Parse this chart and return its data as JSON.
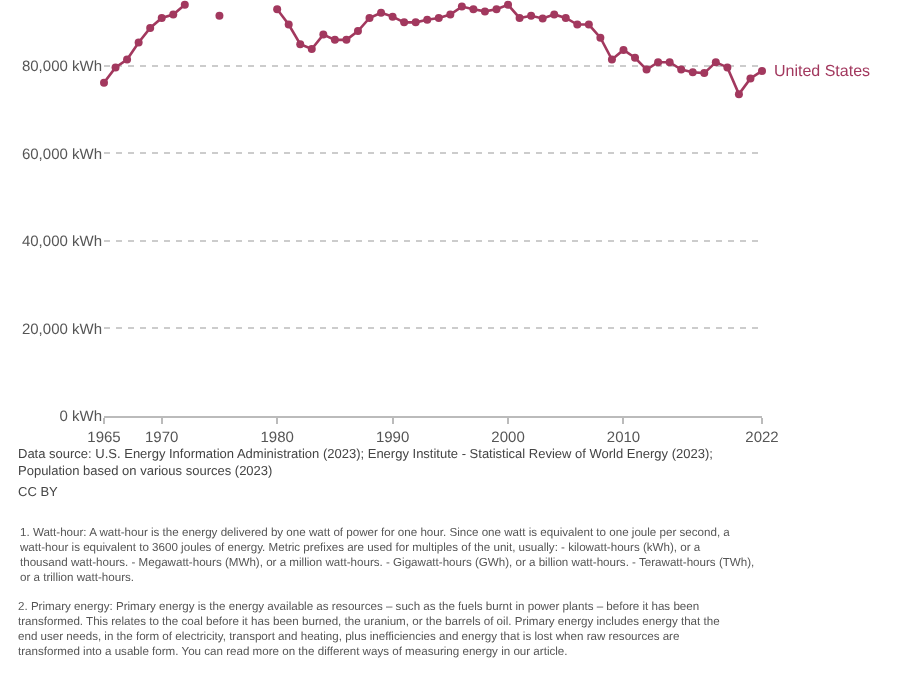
{
  "chart_data": {
    "type": "line",
    "x": [
      1965,
      1966,
      1967,
      1968,
      1969,
      1970,
      1971,
      1972,
      1973,
      1974,
      1975,
      1976,
      1977,
      1978,
      1979,
      1980,
      1981,
      1982,
      1983,
      1984,
      1985,
      1986,
      1987,
      1988,
      1989,
      1990,
      1991,
      1992,
      1993,
      1994,
      1995,
      1996,
      1997,
      1998,
      1999,
      2000,
      2001,
      2002,
      2003,
      2004,
      2005,
      2006,
      2007,
      2008,
      2009,
      2010,
      2011,
      2012,
      2013,
      2014,
      2015,
      2016,
      2017,
      2018,
      2019,
      2020,
      2021,
      2022
    ],
    "series": [
      {
        "name": "United States",
        "color": "#a2385e",
        "values": [
          76100,
          79600,
          81400,
          85300,
          88600,
          90900,
          91700,
          93900,
          null,
          null,
          91400,
          null,
          null,
          null,
          null,
          92900,
          89400,
          84900,
          83800,
          87100,
          85900,
          85900,
          87900,
          90900,
          92100,
          91200,
          89900,
          89900,
          90500,
          90900,
          91700,
          93500,
          92900,
          92400,
          92900,
          93900,
          90900,
          91400,
          90800,
          91700,
          90900,
          89400,
          89400,
          86400,
          81400,
          83600,
          81800,
          79100,
          80800,
          80800,
          79100,
          78500,
          78300,
          80800,
          79600,
          73500,
          77100,
          78800
        ]
      }
    ],
    "xlim": [
      1965,
      2022
    ],
    "xticks": [
      1965,
      1970,
      1980,
      1990,
      2000,
      2010,
      2022
    ],
    "ylim": [
      0,
      95000
    ],
    "yticks": [
      {
        "value": 0,
        "label": "0 kWh"
      },
      {
        "value": 20000,
        "label": "20,000 kWh"
      },
      {
        "value": 40000,
        "label": "40,000 kWh"
      },
      {
        "value": 60000,
        "label": "60,000 kWh"
      },
      {
        "value": 80000,
        "label": "80,000 kWh"
      }
    ],
    "grid": "y",
    "marker": "circle",
    "line_style": "solid",
    "legend": false,
    "annotations": [
      "Data source: U.S. Energy Information Administration (2023); Energy Institute - Statistical Review of World Energy (2023); Population based on various sources (2023)",
      "CC BY",
      "1. Watt-hour: A watt-hour is the energy delivered by one watt of power for one hour. Since one watt is equivalent to one joule per second, a watt-hour is equivalent to 3600 joules of energy. Metric prefixes are used for multiples of the unit, usually: - kilowatt-hours (kWh), or a thousand watt-hours. - Megawatt-hours (MWh), or a million watt-hours. - Gigawatt-hours (GWh), or a billion watt-hours. - Terawatt-hours (TWh), or a trillion watt-hours.",
      "2. Primary energy: Primary energy is the energy available as resources – such as the fuels burnt in power plants – before it has been transformed. This relates to the coal before it has been burned, the uranium, or the barrels of oil. Primary energy includes energy that the end user needs, in the form of electricity, transport and heating, plus inefficiencies and energy that is lost when raw resources are transformed into a usable form. You can read more on the different ways of measuring energy in our article."
    ]
  }
}
